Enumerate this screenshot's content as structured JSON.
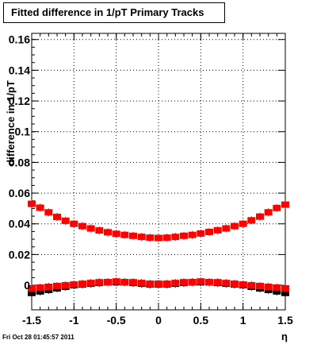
{
  "title": "Fitted difference in 1/pT  Primary Tracks",
  "footer": "Fri Oct 28 01:45:57 2011",
  "chart_data": {
    "type": "scatter",
    "xlabel": "η",
    "ylabel": "difference in 1/pT",
    "xlim": [
      -1.5,
      1.5
    ],
    "ylim": [
      -0.016,
      0.164
    ],
    "x_ticks": [
      "-1.5",
      "-1",
      "-0.5",
      "0",
      "0.5",
      "1",
      "1.5"
    ],
    "y_ticks": [
      "0",
      "0.02",
      "0.04",
      "0.06",
      "0.08",
      "0.1",
      "0.12",
      "0.14",
      "0.16"
    ],
    "grid": true,
    "series": [
      {
        "color": "#000000",
        "points": [
          [
            -1.5,
            -0.005
          ],
          [
            -1.4,
            -0.004
          ],
          [
            -1.3,
            -0.003
          ],
          [
            -1.2,
            -0.002
          ],
          [
            -1.1,
            -0.001
          ],
          [
            -1.0,
            0.0
          ],
          [
            -0.9,
            0.0005
          ],
          [
            -0.8,
            0.001
          ],
          [
            -0.7,
            0.0015
          ],
          [
            -0.6,
            0.002
          ],
          [
            -0.5,
            0.002
          ],
          [
            -0.4,
            0.002
          ],
          [
            -0.3,
            0.0015
          ],
          [
            -0.2,
            0.001
          ],
          [
            -0.1,
            0.0005
          ],
          [
            0.0,
            0.0005
          ],
          [
            0.1,
            0.0005
          ],
          [
            0.2,
            0.001
          ],
          [
            0.3,
            0.0015
          ],
          [
            0.4,
            0.002
          ],
          [
            0.5,
            0.002
          ],
          [
            0.6,
            0.002
          ],
          [
            0.7,
            0.0015
          ],
          [
            0.8,
            0.001
          ],
          [
            0.9,
            0.0005
          ],
          [
            1.0,
            0.0
          ],
          [
            1.1,
            -0.001
          ],
          [
            1.2,
            -0.002
          ],
          [
            1.3,
            -0.003
          ],
          [
            1.4,
            -0.004
          ],
          [
            1.5,
            -0.005
          ]
        ]
      },
      {
        "color": "#ff0000",
        "points": [
          [
            -1.5,
            -0.002
          ],
          [
            -1.4,
            -0.0015
          ],
          [
            -1.3,
            -0.001
          ],
          [
            -1.2,
            -0.0005
          ],
          [
            -1.1,
            0.0
          ],
          [
            -1.0,
            0.0005
          ],
          [
            -0.9,
            0.001
          ],
          [
            -0.8,
            0.0015
          ],
          [
            -0.7,
            0.002
          ],
          [
            -0.6,
            0.002
          ],
          [
            -0.5,
            0.0025
          ],
          [
            -0.4,
            0.002
          ],
          [
            -0.3,
            0.002
          ],
          [
            -0.2,
            0.0015
          ],
          [
            -0.1,
            0.001
          ],
          [
            0.0,
            0.001
          ],
          [
            0.1,
            0.001
          ],
          [
            0.2,
            0.0015
          ],
          [
            0.3,
            0.002
          ],
          [
            0.4,
            0.002
          ],
          [
            0.5,
            0.0025
          ],
          [
            0.6,
            0.002
          ],
          [
            0.7,
            0.002
          ],
          [
            0.8,
            0.0015
          ],
          [
            0.9,
            0.001
          ],
          [
            1.0,
            0.0005
          ],
          [
            1.1,
            0.0
          ],
          [
            1.2,
            -0.0005
          ],
          [
            1.3,
            -0.001
          ],
          [
            1.4,
            -0.0015
          ],
          [
            1.5,
            -0.002
          ]
        ]
      },
      {
        "color": "#ff0000",
        "points": [
          [
            -1.5,
            0.053
          ],
          [
            -1.4,
            0.0505
          ],
          [
            -1.3,
            0.0475
          ],
          [
            -1.2,
            0.0445
          ],
          [
            -1.1,
            0.042
          ],
          [
            -1.0,
            0.04
          ],
          [
            -0.9,
            0.0385
          ],
          [
            -0.8,
            0.037
          ],
          [
            -0.7,
            0.0357
          ],
          [
            -0.6,
            0.0345
          ],
          [
            -0.5,
            0.0335
          ],
          [
            -0.4,
            0.0328
          ],
          [
            -0.3,
            0.0322
          ],
          [
            -0.2,
            0.0315
          ],
          [
            -0.1,
            0.031
          ],
          [
            0.0,
            0.0308
          ],
          [
            0.1,
            0.031
          ],
          [
            0.2,
            0.0315
          ],
          [
            0.3,
            0.0322
          ],
          [
            0.4,
            0.0328
          ],
          [
            0.5,
            0.0337
          ],
          [
            0.6,
            0.0347
          ],
          [
            0.7,
            0.0358
          ],
          [
            0.8,
            0.037
          ],
          [
            0.9,
            0.0385
          ],
          [
            1.0,
            0.04
          ],
          [
            1.1,
            0.0423
          ],
          [
            1.2,
            0.0447
          ],
          [
            1.3,
            0.0475
          ],
          [
            1.4,
            0.0503
          ],
          [
            1.5,
            0.0525
          ]
        ]
      }
    ]
  }
}
